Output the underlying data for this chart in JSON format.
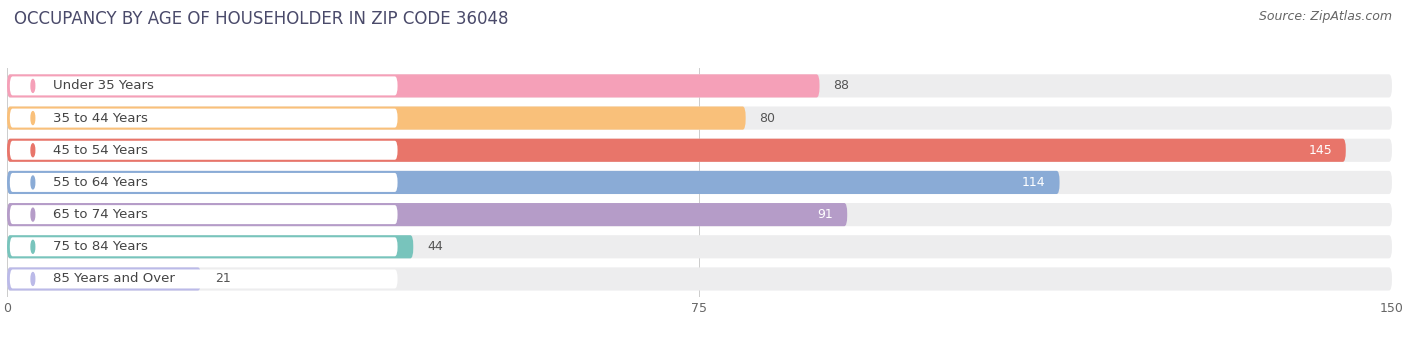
{
  "title": "OCCUPANCY BY AGE OF HOUSEHOLDER IN ZIP CODE 36048",
  "source": "Source: ZipAtlas.com",
  "categories": [
    "Under 35 Years",
    "35 to 44 Years",
    "45 to 54 Years",
    "55 to 64 Years",
    "65 to 74 Years",
    "75 to 84 Years",
    "85 Years and Over"
  ],
  "values": [
    88,
    80,
    145,
    114,
    91,
    44,
    21
  ],
  "bar_colors": [
    "#F5A0B8",
    "#F9C07A",
    "#E8756A",
    "#8AABD6",
    "#B59CC8",
    "#78C4BC",
    "#BBBAE8"
  ],
  "bar_bg_colors": [
    "#EDEDEE",
    "#EDEDEE",
    "#EDEDEE",
    "#EDEDEE",
    "#EDEDEE",
    "#EDEDEE",
    "#EDEDEE"
  ],
  "value_inside": [
    false,
    false,
    true,
    true,
    true,
    false,
    false
  ],
  "xlim": [
    0,
    150
  ],
  "xticks": [
    0,
    75,
    150
  ],
  "background_color": "#ffffff",
  "title_fontsize": 12,
  "source_fontsize": 9,
  "label_fontsize": 9.5,
  "value_fontsize": 9
}
